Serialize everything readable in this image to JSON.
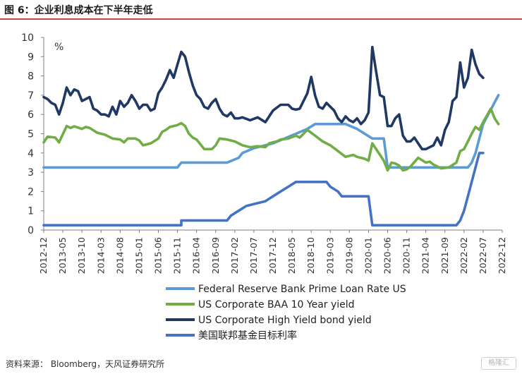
{
  "title": "图 6：企业利息成本在下半年走低",
  "source": "资料来源： Bloomberg，天风证券研究所",
  "watermark": "格隆汇",
  "chart_data": {
    "type": "line",
    "unit_label": "%",
    "ylim": [
      0,
      10
    ],
    "yticks": [
      "0",
      "1",
      "2",
      "3",
      "4",
      "5",
      "6",
      "7",
      "8",
      "9",
      "10"
    ],
    "xlim": [
      0,
      120
    ],
    "xtick_labels": [
      "2012-12",
      "2013-05",
      "2013-10",
      "2014-03",
      "2014-08",
      "2015-01",
      "2015-06",
      "2015-11",
      "2016-04",
      "2016-09",
      "2017-02",
      "2017-07",
      "2017-12",
      "2018-05",
      "2018-10",
      "2019-03",
      "2019-08",
      "2020-01",
      "2020-06",
      "2020-11",
      "2021-04",
      "2021-09",
      "2022-02",
      "2022-07",
      "2022-12"
    ],
    "x_unit": "months since 2012-12",
    "series": [
      {
        "name": "Federal Reserve Bank Prime Loan Rate US",
        "color": "#5b9bd5",
        "points": [
          [
            0,
            3.25
          ],
          [
            35,
            3.25
          ],
          [
            36,
            3.5
          ],
          [
            48,
            3.5
          ],
          [
            51,
            3.75
          ],
          [
            52,
            4.0
          ],
          [
            55,
            4.25
          ],
          [
            60,
            4.5
          ],
          [
            63,
            4.75
          ],
          [
            66,
            5.0
          ],
          [
            69,
            5.25
          ],
          [
            71,
            5.5
          ],
          [
            79,
            5.5
          ],
          [
            82,
            5.25
          ],
          [
            84,
            5.0
          ],
          [
            86,
            4.75
          ],
          [
            88,
            4.75
          ],
          [
            89,
            4.75
          ],
          [
            90,
            3.25
          ],
          [
            111,
            3.25
          ],
          [
            112,
            3.5
          ],
          [
            113,
            4.0
          ],
          [
            114,
            4.75
          ],
          [
            115,
            5.5
          ],
          [
            117,
            6.25
          ],
          [
            119,
            7.0
          ]
        ]
      },
      {
        "name": "US Corporate BAA 10 Year yield",
        "color": "#70ad47",
        "points": [
          [
            0,
            4.55
          ],
          [
            1,
            4.85
          ],
          [
            3,
            4.8
          ],
          [
            4,
            4.55
          ],
          [
            6,
            5.4
          ],
          [
            7,
            5.3
          ],
          [
            8,
            5.38
          ],
          [
            10,
            5.25
          ],
          [
            11,
            5.35
          ],
          [
            12,
            5.3
          ],
          [
            14,
            5.05
          ],
          [
            16,
            4.95
          ],
          [
            18,
            4.75
          ],
          [
            20,
            4.7
          ],
          [
            21,
            4.55
          ],
          [
            22,
            4.75
          ],
          [
            24,
            4.75
          ],
          [
            25,
            4.65
          ],
          [
            26,
            4.4
          ],
          [
            28,
            4.5
          ],
          [
            30,
            4.75
          ],
          [
            31,
            5.1
          ],
          [
            32,
            5.2
          ],
          [
            33,
            5.35
          ],
          [
            34,
            5.4
          ],
          [
            35,
            5.45
          ],
          [
            36,
            5.55
          ],
          [
            37,
            5.4
          ],
          [
            38,
            5.0
          ],
          [
            39,
            4.8
          ],
          [
            40,
            4.7
          ],
          [
            42,
            4.2
          ],
          [
            44,
            4.2
          ],
          [
            45,
            4.4
          ],
          [
            46,
            4.75
          ],
          [
            48,
            4.7
          ],
          [
            49,
            4.65
          ],
          [
            50,
            4.6
          ],
          [
            52,
            4.4
          ],
          [
            54,
            4.3
          ],
          [
            56,
            4.35
          ],
          [
            58,
            4.3
          ],
          [
            59,
            4.5
          ],
          [
            61,
            4.6
          ],
          [
            62,
            4.7
          ],
          [
            64,
            4.75
          ],
          [
            66,
            4.9
          ],
          [
            67,
            4.8
          ],
          [
            69,
            5.2
          ],
          [
            71,
            4.9
          ],
          [
            73,
            4.6
          ],
          [
            75,
            4.4
          ],
          [
            77,
            4.1
          ],
          [
            79,
            3.8
          ],
          [
            81,
            3.9
          ],
          [
            82,
            3.8
          ],
          [
            84,
            3.7
          ],
          [
            85,
            3.6
          ],
          [
            86,
            4.5
          ],
          [
            88,
            3.9
          ],
          [
            89,
            3.6
          ],
          [
            90,
            3.1
          ],
          [
            91,
            3.5
          ],
          [
            92,
            3.45
          ],
          [
            93,
            3.35
          ],
          [
            94,
            3.1
          ],
          [
            95,
            3.15
          ],
          [
            96,
            3.3
          ],
          [
            98,
            3.75
          ],
          [
            100,
            3.5
          ],
          [
            101,
            3.55
          ],
          [
            102,
            3.4
          ],
          [
            103,
            3.3
          ],
          [
            104,
            3.2
          ],
          [
            106,
            3.25
          ],
          [
            108,
            3.5
          ],
          [
            109,
            4.1
          ],
          [
            110,
            4.2
          ],
          [
            111,
            4.6
          ],
          [
            112,
            5.0
          ],
          [
            113,
            5.35
          ],
          [
            114,
            5.2
          ],
          [
            115,
            5.6
          ],
          [
            117,
            6.3
          ],
          [
            118,
            5.8
          ],
          [
            119,
            5.5
          ]
        ]
      },
      {
        "name": "US Corporate High Yield bond yield",
        "color": "#1f3864",
        "points": [
          [
            0,
            6.9
          ],
          [
            1,
            6.8
          ],
          [
            2,
            6.6
          ],
          [
            3,
            6.5
          ],
          [
            4,
            6.0
          ],
          [
            5,
            6.6
          ],
          [
            6,
            7.4
          ],
          [
            7,
            7.0
          ],
          [
            8,
            7.3
          ],
          [
            9,
            7.2
          ],
          [
            10,
            6.7
          ],
          [
            12,
            6.9
          ],
          [
            13,
            6.3
          ],
          [
            14,
            6.2
          ],
          [
            15,
            6.0
          ],
          [
            16,
            6.0
          ],
          [
            17,
            5.9
          ],
          [
            18,
            6.4
          ],
          [
            19,
            6.0
          ],
          [
            20,
            6.7
          ],
          [
            21,
            6.4
          ],
          [
            22,
            6.6
          ],
          [
            23,
            7.0
          ],
          [
            24,
            6.7
          ],
          [
            25,
            6.3
          ],
          [
            26,
            6.5
          ],
          [
            27,
            6.5
          ],
          [
            28,
            6.2
          ],
          [
            29,
            6.3
          ],
          [
            30,
            7.1
          ],
          [
            31,
            7.4
          ],
          [
            32,
            7.8
          ],
          [
            33,
            8.3
          ],
          [
            34,
            7.9
          ],
          [
            35,
            8.6
          ],
          [
            36,
            9.25
          ],
          [
            37,
            9.0
          ],
          [
            38,
            8.2
          ],
          [
            39,
            7.5
          ],
          [
            40,
            7.0
          ],
          [
            41,
            6.8
          ],
          [
            42,
            6.4
          ],
          [
            43,
            6.3
          ],
          [
            44,
            6.6
          ],
          [
            45,
            6.8
          ],
          [
            46,
            6.3
          ],
          [
            47,
            6.0
          ],
          [
            48,
            5.9
          ],
          [
            49,
            6.1
          ],
          [
            50,
            5.8
          ],
          [
            51,
            5.8
          ],
          [
            52,
            5.85
          ],
          [
            54,
            5.7
          ],
          [
            56,
            5.85
          ],
          [
            58,
            5.6
          ],
          [
            60,
            6.2
          ],
          [
            62,
            6.5
          ],
          [
            64,
            6.5
          ],
          [
            65,
            6.3
          ],
          [
            66,
            6.25
          ],
          [
            67,
            6.3
          ],
          [
            68,
            6.7
          ],
          [
            69,
            7.1
          ],
          [
            70,
            7.95
          ],
          [
            71,
            7.0
          ],
          [
            72,
            6.4
          ],
          [
            73,
            6.3
          ],
          [
            74,
            6.6
          ],
          [
            75,
            6.4
          ],
          [
            76,
            6.2
          ],
          [
            77,
            5.8
          ],
          [
            78,
            5.6
          ],
          [
            79,
            5.9
          ],
          [
            80,
            5.7
          ],
          [
            81,
            5.6
          ],
          [
            82,
            5.8
          ],
          [
            83,
            5.5
          ],
          [
            84,
            5.7
          ],
          [
            85,
            6.1
          ],
          [
            86,
            9.5
          ],
          [
            87,
            8.2
          ],
          [
            88,
            7.0
          ],
          [
            89,
            6.9
          ],
          [
            90,
            5.4
          ],
          [
            91,
            5.4
          ],
          [
            92,
            5.8
          ],
          [
            93,
            6.0
          ],
          [
            94,
            4.9
          ],
          [
            95,
            4.6
          ],
          [
            96,
            4.6
          ],
          [
            97,
            4.8
          ],
          [
            98,
            4.5
          ],
          [
            99,
            4.2
          ],
          [
            100,
            4.2
          ],
          [
            101,
            4.3
          ],
          [
            102,
            4.4
          ],
          [
            103,
            4.8
          ],
          [
            104,
            4.4
          ],
          [
            105,
            5.2
          ],
          [
            106,
            5.6
          ],
          [
            107,
            6.7
          ],
          [
            108,
            6.9
          ],
          [
            109,
            8.7
          ],
          [
            110,
            7.4
          ],
          [
            111,
            7.9
          ],
          [
            112,
            9.35
          ],
          [
            113,
            8.6
          ],
          [
            114,
            8.1
          ],
          [
            115,
            7.9
          ]
        ]
      },
      {
        "name": "美国联邦基金目标利率",
        "color": "#4472c4",
        "points": [
          [
            0,
            0.25
          ],
          [
            36,
            0.25
          ],
          [
            36,
            0.5
          ],
          [
            48,
            0.5
          ],
          [
            49,
            0.75
          ],
          [
            51,
            1.0
          ],
          [
            53,
            1.25
          ],
          [
            58,
            1.5
          ],
          [
            60,
            1.75
          ],
          [
            62,
            2.0
          ],
          [
            64,
            2.25
          ],
          [
            66,
            2.5
          ],
          [
            74,
            2.5
          ],
          [
            75,
            2.25
          ],
          [
            77,
            2.0
          ],
          [
            78,
            1.75
          ],
          [
            85,
            1.75
          ],
          [
            86,
            0.25
          ],
          [
            108,
            0.25
          ],
          [
            109,
            0.5
          ],
          [
            110,
            1.0
          ],
          [
            111,
            1.75
          ],
          [
            112,
            2.5
          ],
          [
            113,
            3.25
          ],
          [
            114,
            4.0
          ],
          [
            115,
            4.0
          ]
        ]
      }
    ]
  }
}
